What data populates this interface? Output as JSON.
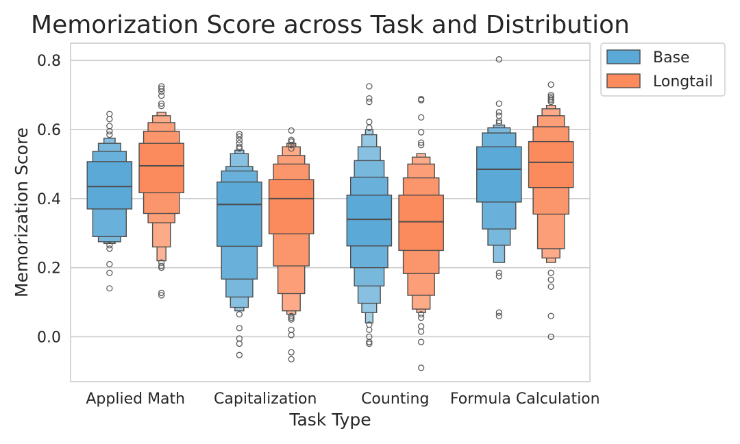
{
  "chart_data": {
    "type": "boxen",
    "title": "Memorization Score across Task and Distribution",
    "xlabel": "Task Type",
    "ylabel": "Memorization Score",
    "ylim": [
      -0.13,
      0.85
    ],
    "yticks": [
      0.0,
      0.2,
      0.4,
      0.6,
      0.8
    ],
    "ytick_labels": [
      "0.0",
      "0.2",
      "0.4",
      "0.6",
      "0.8"
    ],
    "grid": true,
    "legend_position": "outside-top-right",
    "categories": [
      "Applied Math",
      "Capitalization",
      "Counting",
      "Formula Calculation"
    ],
    "series": [
      {
        "name": "Base",
        "color": "#5aa9d6",
        "groups": [
          {
            "category": "Applied Math",
            "median": 0.435,
            "levels": [
              [
                0.37,
                0.507
              ],
              [
                0.29,
                0.537
              ],
              [
                0.275,
                0.56
              ],
              [
                0.27,
                0.575
              ]
            ],
            "outliers": [
              0.645,
              0.63,
              0.61,
              0.595,
              0.585,
              0.265,
              0.255,
              0.21,
              0.185,
              0.14
            ]
          },
          {
            "category": "Capitalization",
            "median": 0.383,
            "levels": [
              [
                0.262,
                0.448
              ],
              [
                0.167,
                0.48
              ],
              [
                0.115,
                0.493
              ],
              [
                0.085,
                0.53
              ],
              [
                0.075,
                0.54
              ]
            ],
            "outliers": [
              0.587,
              0.58,
              0.57,
              0.56,
              0.55,
              0.545,
              0.065,
              0.025,
              -0.005,
              -0.02,
              -0.053
            ]
          },
          {
            "category": "Counting",
            "median": 0.34,
            "levels": [
              [
                0.263,
                0.41
              ],
              [
                0.2,
                0.462
              ],
              [
                0.147,
                0.51
              ],
              [
                0.097,
                0.55
              ],
              [
                0.07,
                0.585
              ],
              [
                0.04,
                0.6
              ]
            ],
            "outliers": [
              0.725,
              0.69,
              0.68,
              0.622,
              0.605,
              0.035,
              0.02,
              0.0,
              -0.015,
              -0.02
            ]
          },
          {
            "category": "Formula Calculation",
            "median": 0.485,
            "levels": [
              [
                0.39,
                0.55
              ],
              [
                0.312,
                0.59
              ],
              [
                0.265,
                0.605
              ],
              [
                0.215,
                0.613
              ]
            ],
            "outliers": [
              0.803,
              0.675,
              0.65,
              0.64,
              0.625,
              0.62,
              0.185,
              0.175,
              0.07,
              0.06
            ]
          }
        ]
      },
      {
        "name": "Longtail",
        "color": "#fb8a5c",
        "groups": [
          {
            "category": "Applied Math",
            "median": 0.495,
            "levels": [
              [
                0.417,
                0.56
              ],
              [
                0.357,
                0.595
              ],
              [
                0.33,
                0.62
              ],
              [
                0.26,
                0.64
              ],
              [
                0.22,
                0.65
              ]
            ],
            "outliers": [
              0.725,
              0.718,
              0.71,
              0.698,
              0.675,
              0.668,
              0.215,
              0.205,
              0.2,
              0.127,
              0.12
            ]
          },
          {
            "category": "Capitalization",
            "median": 0.4,
            "levels": [
              [
                0.298,
                0.455
              ],
              [
                0.205,
                0.5
              ],
              [
                0.125,
                0.525
              ],
              [
                0.075,
                0.55
              ],
              [
                0.065,
                0.56
              ]
            ],
            "outliers": [
              0.597,
              0.57,
              0.565,
              0.555,
              0.545,
              0.06,
              0.055,
              0.05,
              0.02,
              0.005,
              -0.045,
              -0.065
            ]
          },
          {
            "category": "Counting",
            "median": 0.333,
            "levels": [
              [
                0.25,
                0.41
              ],
              [
                0.183,
                0.46
              ],
              [
                0.12,
                0.5
              ],
              [
                0.08,
                0.52
              ],
              [
                0.07,
                0.53
              ]
            ],
            "outliers": [
              0.688,
              0.685,
              0.635,
              0.592,
              0.562,
              0.555,
              0.065,
              0.055,
              0.03,
              0.015,
              -0.015,
              -0.09
            ]
          },
          {
            "category": "Formula Calculation",
            "median": 0.505,
            "levels": [
              [
                0.432,
                0.565
              ],
              [
                0.355,
                0.608
              ],
              [
                0.255,
                0.64
              ],
              [
                0.228,
                0.66
              ],
              [
                0.215,
                0.67
              ]
            ],
            "outliers": [
              0.73,
              0.7,
              0.695,
              0.69,
              0.685,
              0.68,
              0.185,
              0.165,
              0.145,
              0.06,
              0.0
            ]
          }
        ]
      }
    ]
  }
}
